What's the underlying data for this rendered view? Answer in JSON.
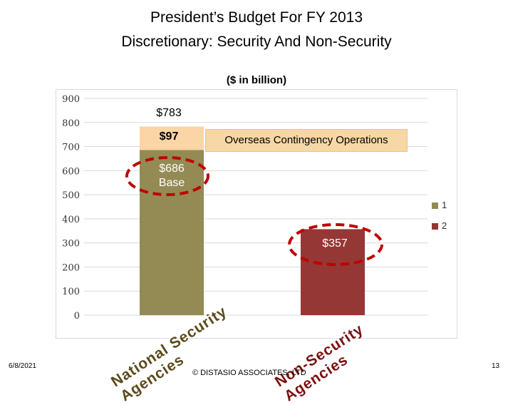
{
  "header": {
    "title_line1": "President’s Budget For FY 2013",
    "title_line2": "Discretionary: Security And Non-Security",
    "subtitle": "($ in billion)"
  },
  "chart_data": {
    "type": "bar",
    "stacked": true,
    "ylim": [
      0,
      900
    ],
    "yticks": [
      "0",
      "100",
      "200",
      "300",
      "400",
      "500",
      "600",
      "700",
      "800",
      "900"
    ],
    "categories": [
      "National Security Agencies",
      "Non-Security Agencies"
    ],
    "series": [
      {
        "name": "1",
        "color": "#948a54",
        "values": [
          686,
          0
        ]
      },
      {
        "name": "2",
        "color": "#953735",
        "values": [
          0,
          357
        ]
      }
    ],
    "overlay": {
      "name": "Overseas Contingency Operations",
      "color": "#fbd5a5",
      "values": [
        97,
        0
      ]
    },
    "legend_position": "right"
  },
  "annotations": {
    "total_label": "$783",
    "oco_value": "$97",
    "oco_label": "Overseas Contingency Operations",
    "base_label_line1": "$686",
    "base_label_line2": "Base",
    "nonsec_label": "$357"
  },
  "labels": {
    "national_security_line1": "National Security",
    "national_security_line2": "Agencies",
    "non_security_line1": "Non-Security",
    "non_security_line2": "Agencies"
  },
  "legend": {
    "item1": "1",
    "item2": "2"
  },
  "footer": {
    "date": "6/8/2021",
    "copyright": "© DISTASIO ASSOCIATES, LTD",
    "page": "13"
  },
  "colors": {
    "circle": "#c00000",
    "accent_text_sec": "#5a4a1a",
    "accent_text_nonsec": "#7a1010"
  }
}
